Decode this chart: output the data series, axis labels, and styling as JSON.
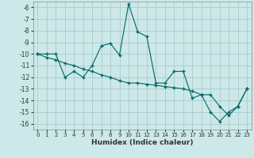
{
  "xlabel": "Humidex (Indice chaleur)",
  "background_color": "#cce8e8",
  "grid_color": "#aacccc",
  "line_color": "#006666",
  "xlim": [
    -0.5,
    23.5
  ],
  "ylim": [
    -16.5,
    -5.5
  ],
  "yticks": [
    -6,
    -7,
    -8,
    -9,
    -10,
    -11,
    -12,
    -13,
    -14,
    -15,
    -16
  ],
  "xticks": [
    0,
    1,
    2,
    3,
    4,
    5,
    6,
    7,
    8,
    9,
    10,
    11,
    12,
    13,
    14,
    15,
    16,
    17,
    18,
    19,
    20,
    21,
    22,
    23
  ],
  "series1_x": [
    0,
    1,
    2,
    3,
    4,
    5,
    6,
    7,
    8,
    9,
    10,
    11,
    12,
    13,
    14,
    15,
    16,
    17,
    18,
    19,
    20,
    21,
    22,
    23
  ],
  "series1_y": [
    -10.0,
    -10.0,
    -10.0,
    -12.0,
    -11.5,
    -12.0,
    -11.0,
    -9.3,
    -9.1,
    -10.1,
    -5.7,
    -8.1,
    -8.5,
    -12.5,
    -12.5,
    -11.5,
    -11.5,
    -13.8,
    -13.5,
    -15.0,
    -15.8,
    -15.0,
    -14.5,
    -13.0
  ],
  "series2_x": [
    0,
    1,
    2,
    3,
    4,
    5,
    6,
    7,
    8,
    9,
    10,
    11,
    12,
    13,
    14,
    15,
    16,
    17,
    18,
    19,
    20,
    21,
    22,
    23
  ],
  "series2_y": [
    -10.0,
    -10.3,
    -10.5,
    -10.8,
    -11.0,
    -11.3,
    -11.5,
    -11.8,
    -12.0,
    -12.3,
    -12.5,
    -12.5,
    -12.6,
    -12.7,
    -12.8,
    -12.9,
    -13.0,
    -13.2,
    -13.5,
    -13.5,
    -14.5,
    -15.3,
    -14.5,
    -13.0
  ]
}
